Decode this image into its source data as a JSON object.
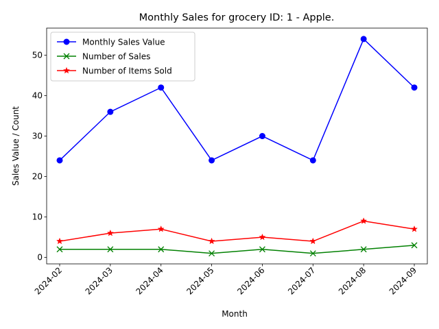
{
  "chart_data": {
    "type": "line",
    "title": "Monthly Sales for grocery ID: 1 - Apple.",
    "xlabel": "Month",
    "ylabel": "Sales Value / Count",
    "categories": [
      "2024-02",
      "2024-03",
      "2024-04",
      "2024-05",
      "2024-06",
      "2024-07",
      "2024-08",
      "2024-09"
    ],
    "yticks": [
      0,
      10,
      20,
      30,
      40,
      50
    ],
    "ylim": [
      -1.6,
      56.7
    ],
    "grid": false,
    "legend_position": "top-left",
    "series": [
      {
        "name": "Monthly Sales Value",
        "color": "#0000ff",
        "marker": "circle",
        "values": [
          24,
          36,
          42,
          24,
          30,
          24,
          54,
          42
        ]
      },
      {
        "name": "Number of Sales",
        "color": "#008000",
        "marker": "x",
        "values": [
          2,
          2,
          2,
          1,
          2,
          1,
          2,
          3
        ]
      },
      {
        "name": "Number of Items Sold",
        "color": "#ff0000",
        "marker": "star",
        "values": [
          4,
          6,
          7,
          4,
          5,
          4,
          9,
          7
        ]
      }
    ]
  }
}
